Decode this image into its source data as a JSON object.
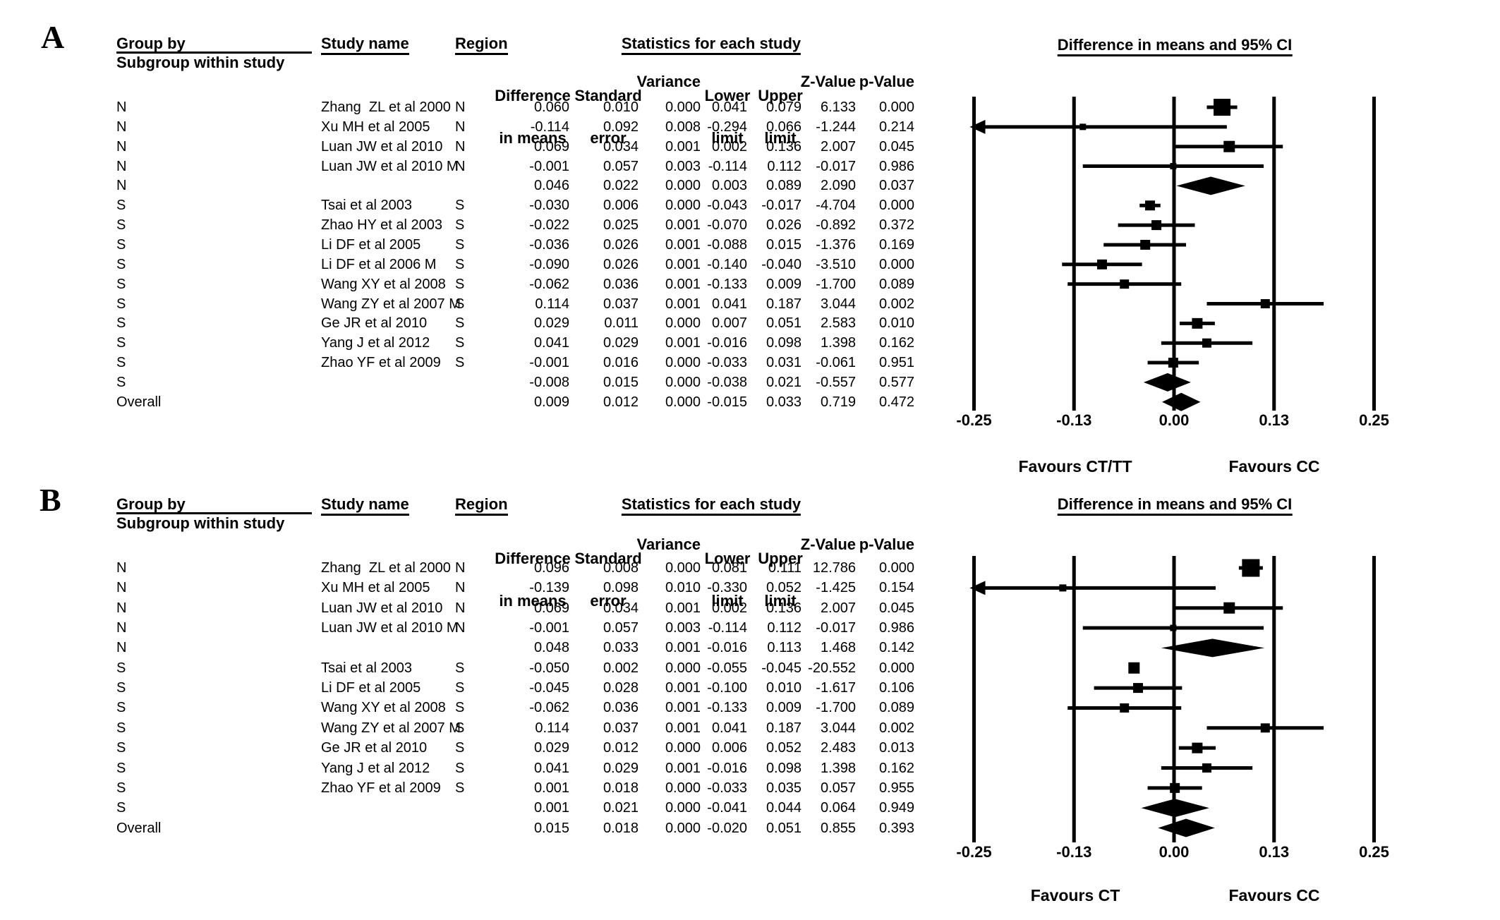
{
  "page": {
    "background": "#ffffff",
    "ink_color": "#000000"
  },
  "columns": {
    "group_by": "Group by",
    "subgroup": "Subgroup within study",
    "study_name": "Study name",
    "region": "Region",
    "stats_title": "Statistics for each study",
    "diff_line1": "Difference",
    "diff_line2": "in means",
    "se_line1": "Standard",
    "se_line2": "error",
    "variance": "Variance",
    "lower_line1": "Lower",
    "lower_line2": "limit",
    "upper_line1": "Upper",
    "upper_line2": "limit",
    "z": "Z-Value",
    "p": "p-Value",
    "ci_title": "Difference in means and 95% CI"
  },
  "panels": [
    {
      "label": "A",
      "favours_left": "Favours CT/TT",
      "favours_right": "Favours CC",
      "rows": [
        {
          "group": "N",
          "study": "Zhang  ZL et al 2000",
          "region": "N",
          "cells": [
            "0.060",
            "0.010",
            "0.000",
            "0.041",
            "0.079",
            "6.133",
            "0.000"
          ],
          "plot": {
            "type": "square",
            "x": 0.06,
            "lo": 0.041,
            "hi": 0.079,
            "size": 24
          }
        },
        {
          "group": "N",
          "study": "Xu MH et al 2005",
          "region": "N",
          "cells": [
            "-0.114",
            "0.092",
            "0.008",
            "-0.294",
            "0.066",
            "-1.244",
            "0.214"
          ],
          "plot": {
            "type": "square",
            "x": -0.114,
            "lo": -0.294,
            "hi": 0.066,
            "size": 9
          }
        },
        {
          "group": "N",
          "study": "Luan JW et al 2010",
          "region": "N",
          "cells": [
            "0.069",
            "0.034",
            "0.001",
            "0.002",
            "0.136",
            "2.007",
            "0.045"
          ],
          "plot": {
            "type": "square",
            "x": 0.069,
            "lo": 0.002,
            "hi": 0.136,
            "size": 16
          }
        },
        {
          "group": "N",
          "study": "Luan JW et al 2010 M",
          "region": "N",
          "cells": [
            "-0.001",
            "0.057",
            "0.003",
            "-0.114",
            "0.112",
            "-0.017",
            "0.986"
          ],
          "plot": {
            "type": "square",
            "x": -0.001,
            "lo": -0.114,
            "hi": 0.112,
            "size": 9
          }
        },
        {
          "group": "N",
          "study": "",
          "region": "",
          "cells": [
            "0.046",
            "0.022",
            "0.000",
            "0.003",
            "0.089",
            "2.090",
            "0.037"
          ],
          "plot": {
            "type": "diamond",
            "x": 0.046,
            "lo": 0.003,
            "hi": 0.089
          }
        },
        {
          "group": "S",
          "study": "Tsai et al 2003",
          "region": "S",
          "cells": [
            "-0.030",
            "0.006",
            "0.000",
            "-0.043",
            "-0.017",
            "-4.704",
            "0.000"
          ],
          "plot": {
            "type": "square",
            "x": -0.03,
            "lo": -0.043,
            "hi": -0.017,
            "size": 14
          }
        },
        {
          "group": "S",
          "study": "Zhao HY et al 2003",
          "region": "S",
          "cells": [
            "-0.022",
            "0.025",
            "0.001",
            "-0.070",
            "0.026",
            "-0.892",
            "0.372"
          ],
          "plot": {
            "type": "square",
            "x": -0.022,
            "lo": -0.07,
            "hi": 0.026,
            "size": 14
          }
        },
        {
          "group": "S",
          "study": "Li DF et al 2005",
          "region": "S",
          "cells": [
            "-0.036",
            "0.026",
            "0.001",
            "-0.088",
            "0.015",
            "-1.376",
            "0.169"
          ],
          "plot": {
            "type": "square",
            "x": -0.036,
            "lo": -0.088,
            "hi": 0.015,
            "size": 14
          }
        },
        {
          "group": "S",
          "study": "Li DF et al 2006 M",
          "region": "S",
          "cells": [
            "-0.090",
            "0.026",
            "0.001",
            "-0.140",
            "-0.040",
            "-3.510",
            "0.000"
          ],
          "plot": {
            "type": "square",
            "x": -0.09,
            "lo": -0.14,
            "hi": -0.04,
            "size": 14
          }
        },
        {
          "group": "S",
          "study": "Wang XY et al 2008",
          "region": "S",
          "cells": [
            "-0.062",
            "0.036",
            "0.001",
            "-0.133",
            "0.009",
            "-1.700",
            "0.089"
          ],
          "plot": {
            "type": "square",
            "x": -0.062,
            "lo": -0.133,
            "hi": 0.009,
            "size": 13
          }
        },
        {
          "group": "S",
          "study": "Wang ZY et al 2007 M",
          "region": "S",
          "cells": [
            "0.114",
            "0.037",
            "0.001",
            "0.041",
            "0.187",
            "3.044",
            "0.002"
          ],
          "plot": {
            "type": "square",
            "x": 0.114,
            "lo": 0.041,
            "hi": 0.187,
            "size": 13
          }
        },
        {
          "group": "S",
          "study": "Ge JR et al 2010",
          "region": "S",
          "cells": [
            "0.029",
            "0.011",
            "0.000",
            "0.007",
            "0.051",
            "2.583",
            "0.010"
          ],
          "plot": {
            "type": "square",
            "x": 0.029,
            "lo": 0.007,
            "hi": 0.051,
            "size": 15
          }
        },
        {
          "group": "S",
          "study": "Yang J et al 2012",
          "region": "S",
          "cells": [
            "0.041",
            "0.029",
            "0.001",
            "-0.016",
            "0.098",
            "1.398",
            "0.162"
          ],
          "plot": {
            "type": "square",
            "x": 0.041,
            "lo": -0.016,
            "hi": 0.098,
            "size": 13
          }
        },
        {
          "group": "S",
          "study": "Zhao YF et al 2009",
          "region": "S",
          "cells": [
            "-0.001",
            "0.016",
            "0.000",
            "-0.033",
            "0.031",
            "-0.061",
            "0.951"
          ],
          "plot": {
            "type": "square",
            "x": -0.001,
            "lo": -0.033,
            "hi": 0.031,
            "size": 14
          }
        },
        {
          "group": "S",
          "study": "",
          "region": "",
          "cells": [
            "-0.008",
            "0.015",
            "0.000",
            "-0.038",
            "0.021",
            "-0.557",
            "0.577"
          ],
          "plot": {
            "type": "diamond",
            "x": -0.008,
            "lo": -0.038,
            "hi": 0.021
          }
        },
        {
          "group": "Overall",
          "study": "",
          "region": "",
          "cells": [
            "0.009",
            "0.012",
            "0.000",
            "-0.015",
            "0.033",
            "0.719",
            "0.472"
          ],
          "plot": {
            "type": "diamond",
            "x": 0.009,
            "lo": -0.015,
            "hi": 0.033
          }
        }
      ]
    },
    {
      "label": "B",
      "favours_left": "Favours CT",
      "favours_right": "Favours CC",
      "rows": [
        {
          "group": "N",
          "study": "Zhang  ZL et al 2000",
          "region": "N",
          "cells": [
            "0.096",
            "0.008",
            "0.000",
            "0.081",
            "0.111",
            "12.786",
            "0.000"
          ],
          "plot": {
            "type": "square",
            "x": 0.096,
            "lo": 0.081,
            "hi": 0.111,
            "size": 25
          }
        },
        {
          "group": "N",
          "study": "Xu MH et al 2005",
          "region": "N",
          "cells": [
            "-0.139",
            "0.098",
            "0.010",
            "-0.330",
            "0.052",
            "-1.425",
            "0.154"
          ],
          "plot": {
            "type": "square",
            "x": -0.139,
            "lo": -0.33,
            "hi": 0.052,
            "size": 10
          }
        },
        {
          "group": "N",
          "study": "Luan JW et al 2010",
          "region": "N",
          "cells": [
            "0.069",
            "0.034",
            "0.001",
            "0.002",
            "0.136",
            "2.007",
            "0.045"
          ],
          "plot": {
            "type": "square",
            "x": 0.069,
            "lo": 0.002,
            "hi": 0.136,
            "size": 16
          }
        },
        {
          "group": "N",
          "study": "Luan JW et al 2010 M",
          "region": "N",
          "cells": [
            "-0.001",
            "0.057",
            "0.003",
            "-0.114",
            "0.112",
            "-0.017",
            "0.986"
          ],
          "plot": {
            "type": "square",
            "x": -0.001,
            "lo": -0.114,
            "hi": 0.112,
            "size": 9
          }
        },
        {
          "group": "N",
          "study": "",
          "region": "",
          "cells": [
            "0.048",
            "0.033",
            "0.001",
            "-0.016",
            "0.113",
            "1.468",
            "0.142"
          ],
          "plot": {
            "type": "diamond",
            "x": 0.048,
            "lo": -0.016,
            "hi": 0.113
          }
        },
        {
          "group": "S",
          "study": "Tsai et al 2003",
          "region": "S",
          "cells": [
            "-0.050",
            "0.002",
            "0.000",
            "-0.055",
            "-0.045",
            "-20.552",
            "0.000"
          ],
          "plot": {
            "type": "square",
            "x": -0.05,
            "lo": -0.055,
            "hi": -0.045,
            "size": 16
          }
        },
        {
          "group": "S",
          "study": "Li DF et al 2005",
          "region": "S",
          "cells": [
            "-0.045",
            "0.028",
            "0.001",
            "-0.100",
            "0.010",
            "-1.617",
            "0.106"
          ],
          "plot": {
            "type": "square",
            "x": -0.045,
            "lo": -0.1,
            "hi": 0.01,
            "size": 14
          }
        },
        {
          "group": "S",
          "study": "Wang XY et al 2008",
          "region": "S",
          "cells": [
            "-0.062",
            "0.036",
            "0.001",
            "-0.133",
            "0.009",
            "-1.700",
            "0.089"
          ],
          "plot": {
            "type": "square",
            "x": -0.062,
            "lo": -0.133,
            "hi": 0.009,
            "size": 13
          }
        },
        {
          "group": "S",
          "study": "Wang ZY et al 2007 M",
          "region": "S",
          "cells": [
            "0.114",
            "0.037",
            "0.001",
            "0.041",
            "0.187",
            "3.044",
            "0.002"
          ],
          "plot": {
            "type": "square",
            "x": 0.114,
            "lo": 0.041,
            "hi": 0.187,
            "size": 13
          }
        },
        {
          "group": "S",
          "study": "Ge JR et al 2010",
          "region": "S",
          "cells": [
            "0.029",
            "0.012",
            "0.000",
            "0.006",
            "0.052",
            "2.483",
            "0.013"
          ],
          "plot": {
            "type": "square",
            "x": 0.029,
            "lo": 0.006,
            "hi": 0.052,
            "size": 15
          }
        },
        {
          "group": "S",
          "study": "Yang J et al 2012",
          "region": "S",
          "cells": [
            "0.041",
            "0.029",
            "0.001",
            "-0.016",
            "0.098",
            "1.398",
            "0.162"
          ],
          "plot": {
            "type": "square",
            "x": 0.041,
            "lo": -0.016,
            "hi": 0.098,
            "size": 13
          }
        },
        {
          "group": "S",
          "study": "Zhao YF et al 2009",
          "region": "S",
          "cells": [
            "0.001",
            "0.018",
            "0.000",
            "-0.033",
            "0.035",
            "0.057",
            "0.955"
          ],
          "plot": {
            "type": "square",
            "x": 0.001,
            "lo": -0.033,
            "hi": 0.035,
            "size": 14
          }
        },
        {
          "group": "S",
          "study": "",
          "region": "",
          "cells": [
            "0.001",
            "0.021",
            "0.000",
            "-0.041",
            "0.044",
            "0.064",
            "0.949"
          ],
          "plot": {
            "type": "diamond",
            "x": 0.001,
            "lo": -0.041,
            "hi": 0.044
          }
        },
        {
          "group": "Overall",
          "study": "",
          "region": "",
          "cells": [
            "0.015",
            "0.018",
            "0.000",
            "-0.020",
            "0.051",
            "0.855",
            "0.393"
          ],
          "plot": {
            "type": "diamond",
            "x": 0.015,
            "lo": -0.02,
            "hi": 0.051
          }
        }
      ]
    }
  ],
  "chart_data": [
    {
      "type": "scatter",
      "variant": "forest-plot",
      "panel": "A",
      "title": "Difference in means and 95% CI",
      "xlim": [
        -0.25,
        0.25
      ],
      "xticks": [
        -0.25,
        -0.125,
        0,
        0.125,
        0.25
      ],
      "xtick_labels": [
        "-0.25",
        "-0.13",
        "0.00",
        "0.13",
        "0.25"
      ],
      "footer_left": "Favours CT/TT",
      "footer_right": "Favours CC",
      "points": [
        {
          "label": "Zhang ZL et al 2000",
          "x": 0.06,
          "lo": 0.041,
          "hi": 0.079
        },
        {
          "label": "Xu MH et al 2005",
          "x": -0.114,
          "lo": -0.294,
          "hi": 0.066
        },
        {
          "label": "Luan JW et al 2010",
          "x": 0.069,
          "lo": 0.002,
          "hi": 0.136
        },
        {
          "label": "Luan JW et al 2010 M",
          "x": -0.001,
          "lo": -0.114,
          "hi": 0.112
        },
        {
          "label": "Tsai et al 2003",
          "x": -0.03,
          "lo": -0.043,
          "hi": -0.017
        },
        {
          "label": "Zhao HY et al 2003",
          "x": -0.022,
          "lo": -0.07,
          "hi": 0.026
        },
        {
          "label": "Li DF et al 2005",
          "x": -0.036,
          "lo": -0.088,
          "hi": 0.015
        },
        {
          "label": "Li DF et al 2006 M",
          "x": -0.09,
          "lo": -0.14,
          "hi": -0.04
        },
        {
          "label": "Wang XY et al 2008",
          "x": -0.062,
          "lo": -0.133,
          "hi": 0.009
        },
        {
          "label": "Wang ZY et al 2007 M",
          "x": 0.114,
          "lo": 0.041,
          "hi": 0.187
        },
        {
          "label": "Ge JR et al 2010",
          "x": 0.029,
          "lo": 0.007,
          "hi": 0.051
        },
        {
          "label": "Yang J et al 2012",
          "x": 0.041,
          "lo": -0.016,
          "hi": 0.098
        },
        {
          "label": "Zhao YF et al 2009",
          "x": -0.001,
          "lo": -0.033,
          "hi": 0.031
        }
      ],
      "summaries": [
        {
          "label": "N",
          "x": 0.046,
          "lo": 0.003,
          "hi": 0.089
        },
        {
          "label": "S",
          "x": -0.008,
          "lo": -0.038,
          "hi": 0.021
        },
        {
          "label": "Overall",
          "x": 0.009,
          "lo": -0.015,
          "hi": 0.033
        }
      ]
    },
    {
      "type": "scatter",
      "variant": "forest-plot",
      "panel": "B",
      "title": "Difference in means and 95% CI",
      "xlim": [
        -0.25,
        0.25
      ],
      "xticks": [
        -0.25,
        -0.125,
        0,
        0.125,
        0.25
      ],
      "xtick_labels": [
        "-0.25",
        "-0.13",
        "0.00",
        "0.13",
        "0.25"
      ],
      "footer_left": "Favours CT",
      "footer_right": "Favours CC",
      "points": [
        {
          "label": "Zhang ZL et al 2000",
          "x": 0.096,
          "lo": 0.081,
          "hi": 0.111
        },
        {
          "label": "Xu MH et al 2005",
          "x": -0.139,
          "lo": -0.33,
          "hi": 0.052
        },
        {
          "label": "Luan JW et al 2010",
          "x": 0.069,
          "lo": 0.002,
          "hi": 0.136
        },
        {
          "label": "Luan JW et al 2010 M",
          "x": -0.001,
          "lo": -0.114,
          "hi": 0.112
        },
        {
          "label": "Tsai et al 2003",
          "x": -0.05,
          "lo": -0.055,
          "hi": -0.045
        },
        {
          "label": "Li DF et al 2005",
          "x": -0.045,
          "lo": -0.1,
          "hi": 0.01
        },
        {
          "label": "Wang XY et al 2008",
          "x": -0.062,
          "lo": -0.133,
          "hi": 0.009
        },
        {
          "label": "Wang ZY et al 2007 M",
          "x": 0.114,
          "lo": 0.041,
          "hi": 0.187
        },
        {
          "label": "Ge JR et al 2010",
          "x": 0.029,
          "lo": 0.006,
          "hi": 0.052
        },
        {
          "label": "Yang J et al 2012",
          "x": 0.041,
          "lo": -0.016,
          "hi": 0.098
        },
        {
          "label": "Zhao YF et al 2009",
          "x": 0.001,
          "lo": -0.033,
          "hi": 0.035
        }
      ],
      "summaries": [
        {
          "label": "N",
          "x": 0.048,
          "lo": -0.016,
          "hi": 0.113
        },
        {
          "label": "S",
          "x": 0.001,
          "lo": -0.041,
          "hi": 0.044
        },
        {
          "label": "Overall",
          "x": 0.015,
          "lo": -0.02,
          "hi": 0.051
        }
      ]
    }
  ]
}
